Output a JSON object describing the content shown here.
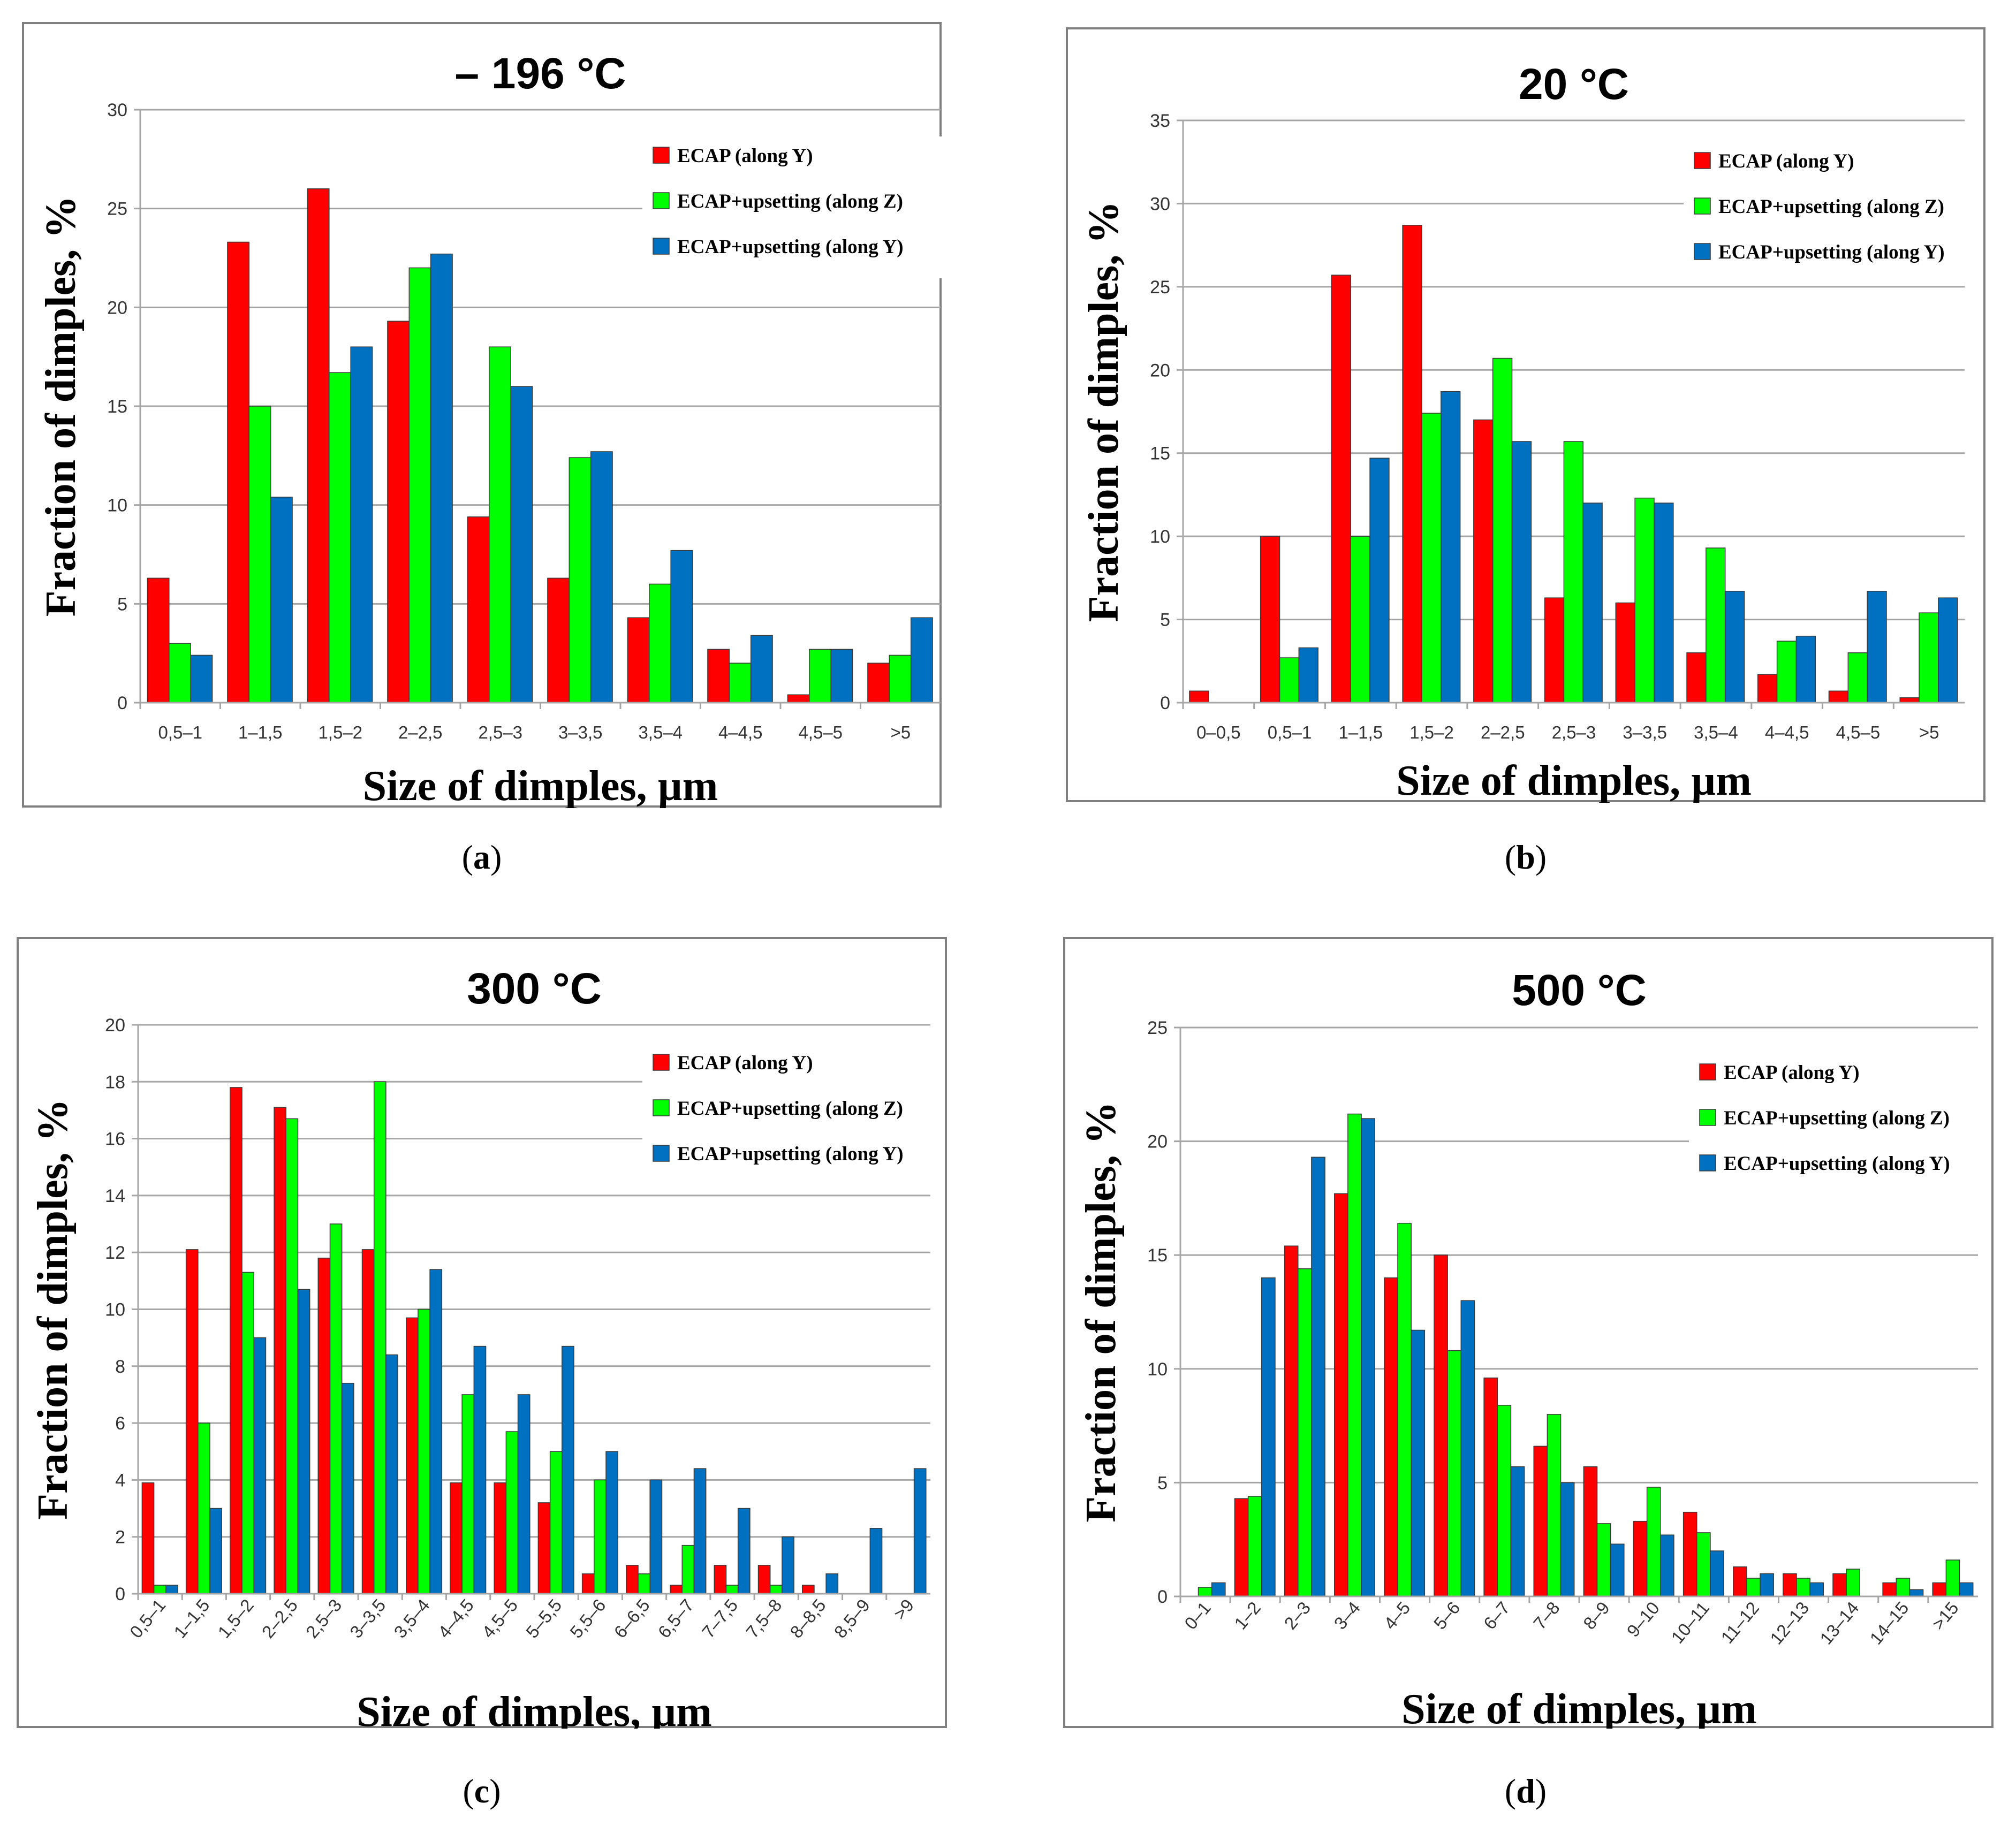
{
  "colors": {
    "ecap_y": "#ff0000",
    "upset_z": "#00ff00",
    "upset_y": "#0070c0",
    "grid": "#a6a6a6",
    "frame": "#7f7f7f"
  },
  "chart_data": [
    {
      "type": "bar",
      "panel": "a",
      "caption": "a",
      "title": "– 196 °C",
      "xlabel": "Size of dimples, µm",
      "ylabel": "Fraction of dimples, %",
      "ylim": [
        0,
        30
      ],
      "ytick_step": 5,
      "grid": true,
      "legend_position": "top-right",
      "categories": [
        "0,5–1",
        "1–1,5",
        "1,5–2",
        "2–2,5",
        "2,5–3",
        "3–3,5",
        "3,5–4",
        "4–4,5",
        "4,5–5",
        ">5"
      ],
      "series": [
        {
          "name": "ECAP (along Y)",
          "color": "#ff0000",
          "values": [
            6.3,
            23.3,
            26.0,
            19.3,
            9.4,
            6.3,
            4.3,
            2.7,
            0.4,
            2.0
          ]
        },
        {
          "name": "ECAP+upsetting (along Z)",
          "color": "#00ff00",
          "values": [
            3.0,
            15.0,
            16.7,
            22.0,
            18.0,
            12.4,
            6.0,
            2.0,
            2.7,
            2.4
          ]
        },
        {
          "name": "ECAP+upsetting (along Y)",
          "color": "#0070c0",
          "values": [
            2.4,
            10.4,
            18.0,
            22.7,
            16.0,
            12.7,
            7.7,
            3.4,
            2.7,
            4.3
          ]
        }
      ]
    },
    {
      "type": "bar",
      "panel": "b",
      "caption": "b",
      "title": "20 °C",
      "xlabel": "Size of dimples, µm",
      "ylabel": "Fraction of dimples, %",
      "ylim": [
        0,
        35
      ],
      "ytick_step": 5,
      "grid": true,
      "legend_position": "top-right",
      "categories": [
        "0–0,5",
        "0,5–1",
        "1–1,5",
        "1,5–2",
        "2–2,5",
        "2,5–3",
        "3–3,5",
        "3,5–4",
        "4–4,5",
        "4,5–5",
        ">5"
      ],
      "series": [
        {
          "name": "ECAP (along Y)",
          "color": "#ff0000",
          "values": [
            0.7,
            10.0,
            25.7,
            28.7,
            17.0,
            6.3,
            6.0,
            3.0,
            1.7,
            0.7,
            0.3
          ]
        },
        {
          "name": "ECAP+upsetting (along Z)",
          "color": "#00ff00",
          "values": [
            0,
            2.7,
            10.0,
            17.4,
            20.7,
            15.7,
            12.3,
            9.3,
            3.7,
            3.0,
            5.4
          ]
        },
        {
          "name": "ECAP+upsetting (along Y)",
          "color": "#0070c0",
          "values": [
            0,
            3.3,
            14.7,
            18.7,
            15.7,
            12.0,
            12.0,
            6.7,
            4.0,
            6.7,
            6.3
          ]
        }
      ]
    },
    {
      "type": "bar",
      "panel": "c",
      "caption": "c",
      "title": "300 °C",
      "xlabel": "Size of dimples, µm",
      "ylabel": "Fraction of dimples, %",
      "ylim": [
        0,
        20
      ],
      "ytick_step": 2,
      "grid": true,
      "legend_position": "top-right",
      "rotate_xticks": true,
      "categories": [
        "0,5–1",
        "1–1,5",
        "1,5–2",
        "2–2,5",
        "2,5–3",
        "3–3,5",
        "3,5–4",
        "4–4,5",
        "4,5–5",
        "5–5,5",
        "5,5–6",
        "6–6,5",
        "6,5–7",
        "7–7,5",
        "7,5–8",
        "8–8,5",
        "8,5–9",
        ">9"
      ],
      "series": [
        {
          "name": "ECAP (along Y)",
          "color": "#ff0000",
          "values": [
            3.9,
            12.1,
            17.8,
            17.1,
            11.8,
            12.1,
            9.7,
            3.9,
            3.9,
            3.2,
            0.7,
            1.0,
            0.3,
            1.0,
            1.0,
            0.3,
            0,
            0
          ]
        },
        {
          "name": "ECAP+upsetting (along Z)",
          "color": "#00ff00",
          "values": [
            0.3,
            6.0,
            11.3,
            16.7,
            13.0,
            18.0,
            10.0,
            7.0,
            5.7,
            5.0,
            4.0,
            0.7,
            1.7,
            0.3,
            0.3,
            0,
            0,
            0
          ]
        },
        {
          "name": "ECAP+upsetting (along Y)",
          "color": "#0070c0",
          "values": [
            0.3,
            3.0,
            9.0,
            10.7,
            7.4,
            8.4,
            11.4,
            8.7,
            7.0,
            8.7,
            5.0,
            4.0,
            4.4,
            3.0,
            2.0,
            0.7,
            2.3,
            4.4
          ]
        }
      ]
    },
    {
      "type": "bar",
      "panel": "d",
      "caption": "d",
      "title": "500 °C",
      "xlabel": "Size of dimples, µm",
      "ylabel": "Fraction of dimples, %",
      "ylim": [
        0,
        25
      ],
      "ytick_step": 5,
      "grid": true,
      "legend_position": "top-right",
      "rotate_xticks": true,
      "categories": [
        "0–1",
        "1–2",
        "2–3",
        "3–4",
        "4–5",
        "5–6",
        "6–7",
        "7–8",
        "8–9",
        "9–10",
        "10–11",
        "11–12",
        "12–13",
        "13–14",
        "14–15",
        ">15"
      ],
      "series": [
        {
          "name": "ECAP (along Y)",
          "color": "#ff0000",
          "values": [
            0,
            4.3,
            15.4,
            17.7,
            14.0,
            15.0,
            9.6,
            6.6,
            5.7,
            3.3,
            3.7,
            1.3,
            1.0,
            1.0,
            0.6,
            0.6
          ]
        },
        {
          "name": "ECAP+upsetting (along Z)",
          "color": "#00ff00",
          "values": [
            0.4,
            4.4,
            14.4,
            21.2,
            16.4,
            10.8,
            8.4,
            8.0,
            3.2,
            4.8,
            2.8,
            0.8,
            0.8,
            1.2,
            0.8,
            1.6
          ]
        },
        {
          "name": "ECAP+upsetting (along Y)",
          "color": "#0070c0",
          "values": [
            0.6,
            14.0,
            19.3,
            21.0,
            11.7,
            13.0,
            5.7,
            5.0,
            2.3,
            2.7,
            2.0,
            1.0,
            0.6,
            0,
            0.3,
            0.6
          ]
        }
      ]
    }
  ]
}
